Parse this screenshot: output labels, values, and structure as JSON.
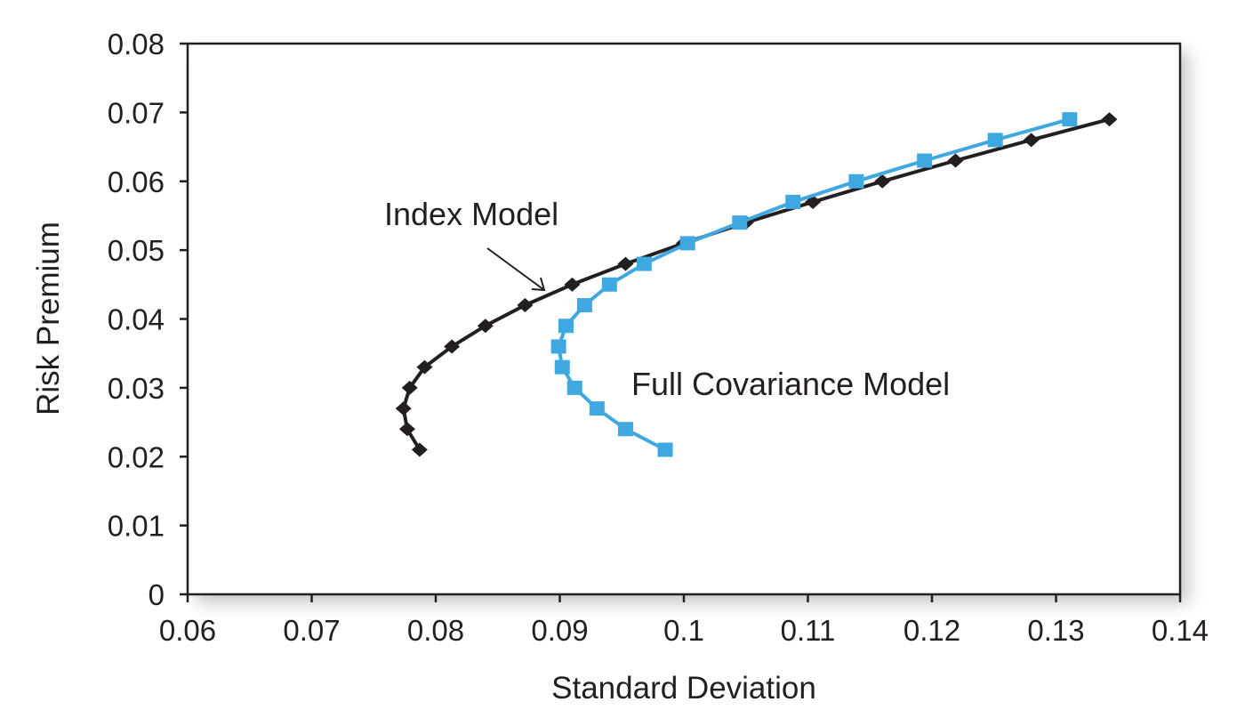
{
  "chart_data": {
    "type": "line",
    "xlabel": "Standard Deviation",
    "ylabel": "Risk Premium",
    "xlim": [
      0.06,
      0.14
    ],
    "ylim": [
      0,
      0.08
    ],
    "x_ticks": [
      "0.06",
      "0.07",
      "0.08",
      "0.09",
      "0.1",
      "0.11",
      "0.12",
      "0.13",
      "0.14"
    ],
    "y_ticks": [
      "0",
      "0.01",
      "0.02",
      "0.03",
      "0.04",
      "0.05",
      "0.06",
      "0.07",
      "0.08"
    ],
    "grid": false,
    "legend": "none",
    "series": [
      {
        "name": "Index Model",
        "marker": "diamond",
        "color": "#231f20",
        "points": [
          [
            0.0787,
            0.021
          ],
          [
            0.0777,
            0.024
          ],
          [
            0.0774,
            0.027
          ],
          [
            0.0779,
            0.03
          ],
          [
            0.0791,
            0.033
          ],
          [
            0.0813,
            0.036
          ],
          [
            0.084,
            0.039
          ],
          [
            0.0872,
            0.042
          ],
          [
            0.091,
            0.045
          ],
          [
            0.0953,
            0.048
          ],
          [
            0.1,
            0.051
          ],
          [
            0.105,
            0.054
          ],
          [
            0.1104,
            0.057
          ],
          [
            0.116,
            0.06
          ],
          [
            0.1219,
            0.063
          ],
          [
            0.128,
            0.066
          ],
          [
            0.1343,
            0.069
          ]
        ]
      },
      {
        "name": "Full Covariance Model",
        "marker": "square",
        "color": "#3fa8e0",
        "points": [
          [
            0.0985,
            0.021
          ],
          [
            0.0953,
            0.024
          ],
          [
            0.093,
            0.027
          ],
          [
            0.0912,
            0.03
          ],
          [
            0.0902,
            0.033
          ],
          [
            0.0899,
            0.036
          ],
          [
            0.0905,
            0.039
          ],
          [
            0.092,
            0.042
          ],
          [
            0.094,
            0.045
          ],
          [
            0.0968,
            0.048
          ],
          [
            0.1003,
            0.051
          ],
          [
            0.1045,
            0.054
          ],
          [
            0.1088,
            0.057
          ],
          [
            0.1139,
            0.06
          ],
          [
            0.1194,
            0.063
          ],
          [
            0.1251,
            0.066
          ],
          [
            0.1311,
            0.069
          ]
        ]
      }
    ],
    "annotations": [
      {
        "text": "Index Model",
        "target_series": "Index Model",
        "arrow": true
      },
      {
        "text": "Full Covariance Model",
        "target_series": "Full Covariance Model",
        "arrow": false
      }
    ]
  }
}
